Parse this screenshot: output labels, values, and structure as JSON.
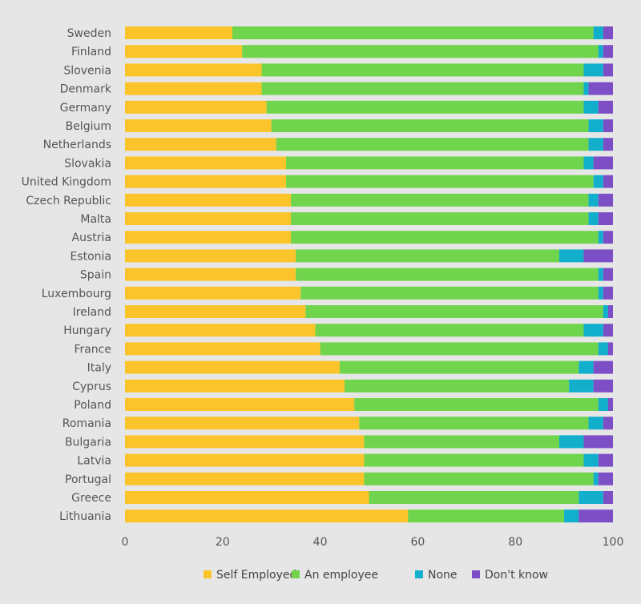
{
  "chart_data": {
    "type": "bar",
    "orientation": "horizontal",
    "stacked": true,
    "categories": [
      "Sweden",
      "Finland",
      "Slovenia",
      "Denmark",
      "Germany",
      "Belgium",
      "Netherlands",
      "Slovakia",
      "United Kingdom",
      "Czech Republic",
      "Malta",
      "Austria",
      "Estonia",
      "Spain",
      "Luxembourg",
      "Ireland",
      "Hungary",
      "France",
      "Italy",
      "Cyprus",
      "Poland",
      "Romania",
      "Bulgaria",
      "Latvia",
      "Portugal",
      "Greece",
      "Lithuania"
    ],
    "series": [
      {
        "name": "Self Employed",
        "color": "#fcc42b",
        "values": [
          22,
          24,
          28,
          28,
          29,
          30,
          31,
          33,
          33,
          34,
          34,
          34,
          35,
          35,
          36,
          37,
          39,
          40,
          44,
          45,
          47,
          48,
          49,
          49,
          49,
          50,
          58
        ]
      },
      {
        "name": "An employee",
        "color": "#70d44c",
        "values": [
          74,
          73,
          66,
          66,
          65,
          65,
          64,
          61,
          63,
          61,
          61,
          63,
          54,
          62,
          61,
          61,
          55,
          57,
          49,
          46,
          50,
          47,
          40,
          45,
          47,
          43,
          32
        ]
      },
      {
        "name": "None",
        "color": "#11afcb",
        "values": [
          2,
          1,
          4,
          1,
          3,
          3,
          3,
          2,
          2,
          2,
          2,
          1,
          5,
          1,
          1,
          1,
          4,
          2,
          3,
          5,
          2,
          3,
          5,
          3,
          1,
          5,
          3
        ]
      },
      {
        "name": "Don't know",
        "color": "#7d4fc6",
        "values": [
          2,
          2,
          2,
          5,
          3,
          2,
          2,
          4,
          2,
          3,
          3,
          2,
          6,
          2,
          2,
          1,
          2,
          1,
          4,
          4,
          1,
          2,
          6,
          3,
          3,
          2,
          7
        ]
      }
    ],
    "xlim": [
      0,
      100
    ],
    "xticks": [
      "0",
      "20",
      "40",
      "60",
      "80",
      "100"
    ],
    "grid": false,
    "legend_position": "bottom"
  }
}
